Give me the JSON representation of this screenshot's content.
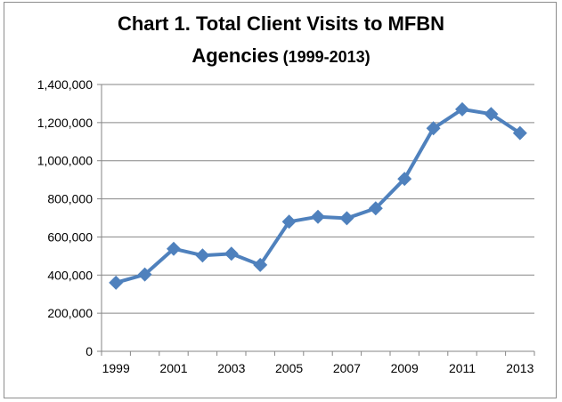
{
  "chart_data": {
    "type": "line",
    "title": "Chart 1. Total Client Visits to MFBN",
    "title_line2": "Agencies",
    "subtitle": "(1999-2013)",
    "xlabel": "",
    "ylabel": "",
    "x": [
      1999,
      2000,
      2001,
      2002,
      2003,
      2004,
      2005,
      2006,
      2007,
      2008,
      2009,
      2010,
      2011,
      2012,
      2013
    ],
    "x_tick_labels": [
      "1999",
      "2001",
      "2003",
      "2005",
      "2007",
      "2009",
      "2011",
      "2013"
    ],
    "x_tick_values": [
      1999,
      2001,
      2003,
      2005,
      2007,
      2009,
      2011,
      2013
    ],
    "y_tick_labels": [
      "0",
      "200,000",
      "400,000",
      "600,000",
      "800,000",
      "1,000,000",
      "1,200,000",
      "1,400,000"
    ],
    "ylim": [
      0,
      1400000
    ],
    "grid": true,
    "series": [
      {
        "values": [
          360000,
          403000,
          538000,
          503000,
          512000,
          453000,
          680000,
          706000,
          698000,
          750000,
          905000,
          1170000,
          1270000,
          1245000,
          1145000
        ]
      }
    ],
    "colors": {
      "line": "#4f81bd",
      "grid": "#868686",
      "axis": "#868686"
    }
  }
}
